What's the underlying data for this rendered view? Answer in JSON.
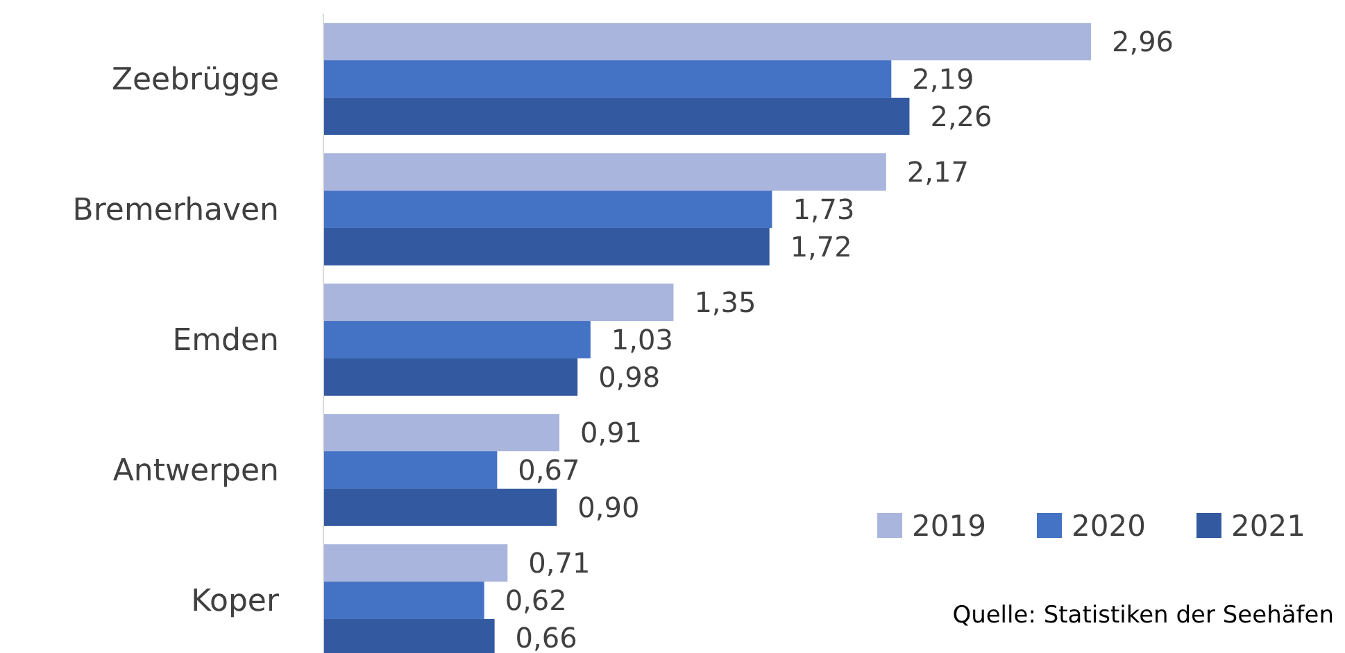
{
  "chart_data": {
    "type": "bar",
    "orientation": "horizontal",
    "categories": [
      "Zeebrügge",
      "Bremerhaven",
      "Emden",
      "Antwerpen",
      "Koper"
    ],
    "series": [
      {
        "name": "2019",
        "color": "#a9b5dc",
        "values": [
          2.96,
          2.17,
          1.35,
          0.91,
          0.71
        ],
        "value_labels": [
          "2,96",
          "2,17",
          "1,35",
          "0,91",
          "0,71"
        ]
      },
      {
        "name": "2020",
        "color": "#4472c4",
        "values": [
          2.19,
          1.73,
          1.03,
          0.67,
          0.62
        ],
        "value_labels": [
          "2,19",
          "1,73",
          "1,03",
          "0,67",
          "0,62"
        ]
      },
      {
        "name": "2021",
        "color": "#335aa0",
        "values": [
          2.26,
          1.72,
          0.98,
          0.9,
          0.66
        ],
        "value_labels": [
          "2,26",
          "1,72",
          "0,98",
          "0,90",
          "0,66"
        ]
      }
    ],
    "legend": "bottom right",
    "annotations": [
      "Quelle: Statistiken der Seehäfen"
    ]
  }
}
